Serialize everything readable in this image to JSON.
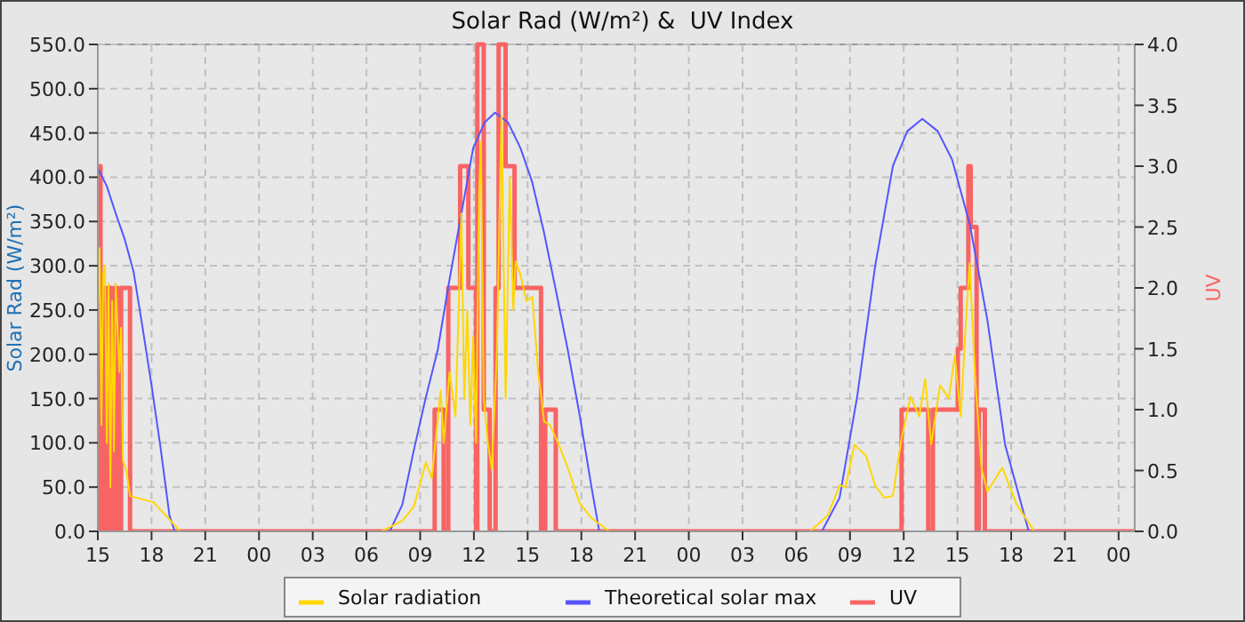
{
  "chart_data": {
    "type": "line",
    "title": "Solar Rad (W/m²) &  UV Index",
    "ylabel": "Solar Rad (W/m²)",
    "y2label": "UV",
    "xlim": [
      15,
      72.9
    ],
    "xticks": [
      {
        "value": 15,
        "label": "15"
      },
      {
        "value": 18,
        "label": "18"
      },
      {
        "value": 21,
        "label": "21"
      },
      {
        "value": 24,
        "label": "00"
      },
      {
        "value": 27,
        "label": "03"
      },
      {
        "value": 30,
        "label": "06"
      },
      {
        "value": 33,
        "label": "09"
      },
      {
        "value": 36,
        "label": "12"
      },
      {
        "value": 39,
        "label": "15"
      },
      {
        "value": 42,
        "label": "18"
      },
      {
        "value": 45,
        "label": "21"
      },
      {
        "value": 48,
        "label": "00"
      },
      {
        "value": 51,
        "label": "03"
      },
      {
        "value": 54,
        "label": "06"
      },
      {
        "value": 57,
        "label": "09"
      },
      {
        "value": 60,
        "label": "12"
      },
      {
        "value": 63,
        "label": "15"
      },
      {
        "value": 66,
        "label": "18"
      },
      {
        "value": 69,
        "label": "21"
      },
      {
        "value": 72,
        "label": "00"
      }
    ],
    "ylim": [
      0,
      550
    ],
    "yticks": [
      {
        "value": 0,
        "label": "0.0"
      },
      {
        "value": 50,
        "label": "50.0"
      },
      {
        "value": 100,
        "label": "100.0"
      },
      {
        "value": 150,
        "label": "150.0"
      },
      {
        "value": 200,
        "label": "200.0"
      },
      {
        "value": 250,
        "label": "250.0"
      },
      {
        "value": 300,
        "label": "300.0"
      },
      {
        "value": 350,
        "label": "350.0"
      },
      {
        "value": 400,
        "label": "400.0"
      },
      {
        "value": 450,
        "label": "450.0"
      },
      {
        "value": 500,
        "label": "500.0"
      },
      {
        "value": 550,
        "label": "550.0"
      }
    ],
    "y2lim": [
      0,
      4
    ],
    "y2ticks": [
      {
        "value": 0,
        "label": "0.0"
      },
      0.5,
      {
        "value": 1,
        "label": "1.0"
      },
      1.5,
      {
        "value": 2,
        "label": "2.0"
      },
      2.5,
      {
        "value": 3,
        "label": "3.0"
      },
      3.5,
      {
        "value": 4,
        "label": "4.0"
      }
    ],
    "grid": true,
    "legend": "bottom",
    "series": [
      {
        "name": "Solar radiation",
        "color": "#ffd700",
        "x": [
          15,
          15.1,
          15.2,
          15.3,
          15.4,
          15.5,
          15.6,
          15.7,
          15.8,
          15.9,
          16.0,
          16.2,
          16.3,
          16.4,
          16.6,
          16.8,
          17.15,
          18.1,
          18.8,
          19.6,
          30.84,
          32.0,
          32.65,
          33.32,
          33.65,
          34.14,
          34.31,
          34.64,
          34.97,
          35.3,
          35.46,
          35.63,
          35.8,
          35.96,
          36.12,
          36.29,
          36.39,
          36.55,
          36.78,
          37.0,
          37.28,
          37.54,
          37.77,
          38.0,
          38.2,
          38.33,
          38.6,
          38.93,
          39.26,
          39.59,
          39.92,
          40.25,
          40.74,
          41.24,
          41.9,
          42.56,
          43.55,
          54.77,
          55.76,
          56.42,
          56.75,
          57.25,
          57.9,
          58.4,
          58.9,
          59.39,
          59.88,
          60.38,
          60.87,
          61.2,
          61.53,
          62.03,
          62.52,
          62.85,
          63.18,
          63.51,
          63.68,
          64.0,
          64.34,
          64.67,
          65.5,
          66.32,
          67.3,
          72.9
        ],
        "values": [
          250,
          320,
          120,
          290,
          300,
          100,
          280,
          50,
          260,
          90,
          280,
          180,
          230,
          80,
          68,
          40,
          38,
          33,
          18,
          0,
          0,
          12,
          28,
          78,
          60,
          159,
          100,
          180,
          130,
          359,
          150,
          250,
          120,
          220,
          100,
          380,
          440,
          150,
          100,
          70,
          200,
          470,
          150,
          400,
          250,
          305,
          290,
          260,
          265,
          180,
          124,
          120,
          98,
          72,
          32,
          15,
          0,
          0,
          18,
          52,
          50,
          98,
          85,
          52,
          38,
          40,
          105,
          152,
          130,
          172,
          98,
          165,
          150,
          199,
          130,
          250,
          303,
          170,
          72,
          45,
          72,
          30,
          0,
          0
        ]
      },
      {
        "name": "Theoretical solar max",
        "color": "#5555ff",
        "x": [
          15,
          15.5,
          16,
          16.5,
          17,
          17.5,
          18,
          18.5,
          19,
          19.3,
          31.3,
          32,
          32.65,
          33.3,
          33.98,
          34.6,
          35.3,
          35.96,
          36.6,
          37.18,
          37.9,
          38.6,
          39.25,
          39.9,
          40.6,
          41.24,
          41.9,
          42.55,
          43.0,
          55.43,
          56.42,
          57.4,
          58.4,
          59.4,
          60.2,
          61.04,
          61.9,
          62.7,
          63.7,
          64.67,
          65.66,
          66.98
        ],
        "values": [
          410,
          390,
          359,
          330,
          293,
          230,
          165,
          95,
          18,
          0,
          0,
          30,
          92,
          150,
          205,
          280,
          359,
          433,
          462,
          473,
          462,
          433,
          395,
          339,
          270,
          205,
          132,
          52,
          0,
          0,
          38,
          152,
          299,
          413,
          452,
          466,
          452,
          420,
          346,
          239,
          98,
          0
        ]
      },
      {
        "name": "UV",
        "type": "step",
        "axis": "y2",
        "color": "#f86464",
        "x": [
          15,
          15.15,
          15.3,
          15.45,
          15.6,
          15.75,
          15.9,
          16.1,
          16.3,
          16.5,
          16.8,
          33.81,
          34.31,
          34.57,
          35.23,
          35.69,
          36.12,
          36.19,
          36.55,
          36.88,
          37.21,
          37.38,
          37.77,
          38.27,
          39.75,
          39.98,
          40.57,
          59.88,
          61.37,
          61.63,
          63.02,
          63.18,
          63.61,
          63.74,
          64.07,
          64.2,
          64.27,
          64.53,
          72.9
        ],
        "values": [
          3,
          0,
          2,
          0,
          2,
          0,
          2,
          0,
          2,
          2,
          0,
          1,
          0,
          2,
          3,
          2,
          0,
          4,
          1,
          0,
          2,
          4,
          3,
          2,
          0,
          1,
          0,
          1,
          0,
          1,
          1.5,
          2,
          3,
          2.5,
          0,
          1,
          1,
          0,
          0
        ]
      }
    ]
  }
}
